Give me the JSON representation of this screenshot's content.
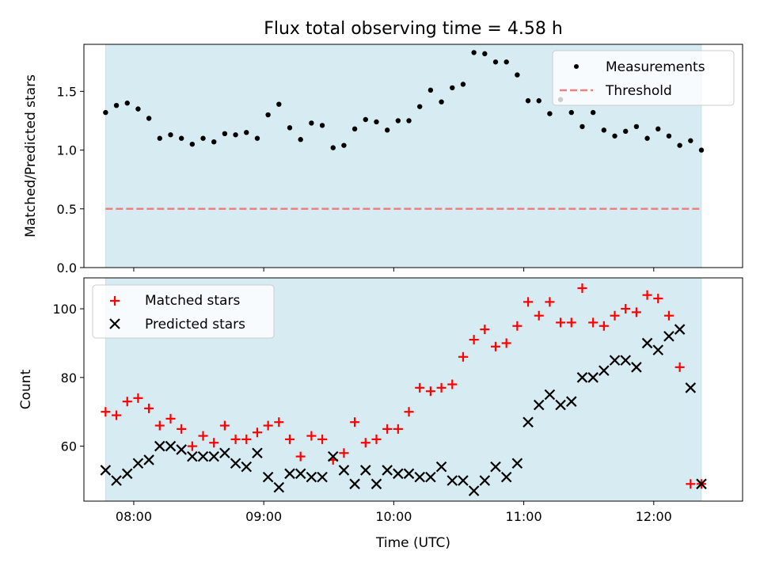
{
  "chart_data": [
    {
      "type": "scatter",
      "title": "Flux total observing time = 4.58 h",
      "ylabel": "Matched/Predicted stars",
      "xlabel": "",
      "ylim": [
        0,
        1.9
      ],
      "yticks": [
        0.0,
        0.5,
        1.0,
        1.5
      ],
      "ytick_labels": [
        "0.0",
        "0.5",
        "1.0",
        "1.5"
      ],
      "xlim": [
        "07:37",
        "12:41"
      ],
      "xticks": [
        "08:00",
        "09:00",
        "10:00",
        "11:00",
        "12:00"
      ],
      "xtick_labels_visible": false,
      "shaded_span": [
        "07:47",
        "12:22"
      ],
      "shade_color": "#add8e6",
      "legend_position": "upper right",
      "series": [
        {
          "name": "Measurements",
          "marker": "dot",
          "color": "#000000",
          "x": [
            "07:47",
            "07:52",
            "07:57",
            "08:02",
            "08:07",
            "08:12",
            "08:17",
            "08:22",
            "08:27",
            "08:32",
            "08:37",
            "08:42",
            "08:47",
            "08:52",
            "08:57",
            "09:02",
            "09:07",
            "09:12",
            "09:17",
            "09:22",
            "09:27",
            "09:32",
            "09:37",
            "09:42",
            "09:47",
            "09:52",
            "09:57",
            "10:02",
            "10:07",
            "10:12",
            "10:17",
            "10:22",
            "10:27",
            "10:32",
            "10:37",
            "10:42",
            "10:47",
            "10:52",
            "10:57",
            "11:02",
            "11:07",
            "11:12",
            "11:17",
            "11:22",
            "11:27",
            "11:32",
            "11:37",
            "11:42",
            "11:47",
            "11:52",
            "11:57",
            "12:02",
            "12:07",
            "12:12",
            "12:17",
            "12:22"
          ],
          "y": [
            1.32,
            1.38,
            1.4,
            1.35,
            1.27,
            1.1,
            1.13,
            1.1,
            1.05,
            1.1,
            1.07,
            1.14,
            1.13,
            1.15,
            1.1,
            1.3,
            1.39,
            1.19,
            1.09,
            1.23,
            1.21,
            1.02,
            1.04,
            1.18,
            1.26,
            1.24,
            1.17,
            1.25,
            1.25,
            1.37,
            1.51,
            1.41,
            1.53,
            1.56,
            1.83,
            1.82,
            1.75,
            1.75,
            1.64,
            1.42,
            1.42,
            1.31,
            1.43,
            1.32,
            1.2,
            1.32,
            1.17,
            1.12,
            1.16,
            1.2,
            1.1,
            1.18,
            1.12,
            1.04,
            1.08,
            1.0
          ]
        },
        {
          "name": "Threshold",
          "marker": "dashed-line",
          "color": "#f08080",
          "x": [
            "07:47",
            "12:22"
          ],
          "y": [
            0.5,
            0.5
          ]
        }
      ]
    },
    {
      "type": "scatter",
      "title": "",
      "ylabel": "Count",
      "xlabel": "Time (UTC)",
      "ylim": [
        44,
        109
      ],
      "yticks": [
        60,
        80,
        100
      ],
      "ytick_labels": [
        "60",
        "80",
        "100"
      ],
      "xlim": [
        "07:37",
        "12:41"
      ],
      "xticks": [
        "08:00",
        "09:00",
        "10:00",
        "11:00",
        "12:00"
      ],
      "xtick_labels": [
        "08:00",
        "09:00",
        "10:00",
        "11:00",
        "12:00"
      ],
      "shaded_span": [
        "07:47",
        "12:22"
      ],
      "shade_color": "#add8e6",
      "legend_position": "upper left",
      "series": [
        {
          "name": "Matched stars",
          "marker": "plus",
          "color": "#ff0000",
          "x": [
            "07:47",
            "07:52",
            "07:57",
            "08:02",
            "08:07",
            "08:12",
            "08:17",
            "08:22",
            "08:27",
            "08:32",
            "08:37",
            "08:42",
            "08:47",
            "08:52",
            "08:57",
            "09:02",
            "09:07",
            "09:12",
            "09:17",
            "09:22",
            "09:27",
            "09:32",
            "09:37",
            "09:42",
            "09:47",
            "09:52",
            "09:57",
            "10:02",
            "10:07",
            "10:12",
            "10:17",
            "10:22",
            "10:27",
            "10:32",
            "10:37",
            "10:42",
            "10:47",
            "10:52",
            "10:57",
            "11:02",
            "11:07",
            "11:12",
            "11:17",
            "11:22",
            "11:27",
            "11:32",
            "11:37",
            "11:42",
            "11:47",
            "11:52",
            "11:57",
            "12:02",
            "12:07",
            "12:12",
            "12:17",
            "12:22"
          ],
          "y": [
            70,
            69,
            73,
            74,
            71,
            66,
            68,
            65,
            60,
            63,
            61,
            66,
            62,
            62,
            64,
            66,
            67,
            62,
            57,
            63,
            62,
            56,
            58,
            67,
            61,
            62,
            65,
            65,
            70,
            77,
            76,
            77,
            78,
            86,
            91,
            94,
            89,
            90,
            95,
            102,
            98,
            102,
            96,
            96,
            106,
            96,
            95,
            98,
            100,
            99,
            104,
            103,
            98,
            83,
            49,
            49
          ]
        },
        {
          "name": "Predicted stars",
          "marker": "x",
          "color": "#000000",
          "x": [
            "07:47",
            "07:52",
            "07:57",
            "08:02",
            "08:07",
            "08:12",
            "08:17",
            "08:22",
            "08:27",
            "08:32",
            "08:37",
            "08:42",
            "08:47",
            "08:52",
            "08:57",
            "09:02",
            "09:07",
            "09:12",
            "09:17",
            "09:22",
            "09:27",
            "09:32",
            "09:37",
            "09:42",
            "09:47",
            "09:52",
            "09:57",
            "10:02",
            "10:07",
            "10:12",
            "10:17",
            "10:22",
            "10:27",
            "10:32",
            "10:37",
            "10:42",
            "10:47",
            "10:52",
            "10:57",
            "11:02",
            "11:07",
            "11:12",
            "11:17",
            "11:22",
            "11:27",
            "11:32",
            "11:37",
            "11:42",
            "11:47",
            "11:52",
            "11:57",
            "12:02",
            "12:07",
            "12:12",
            "12:17",
            "12:22"
          ],
          "y": [
            53,
            50,
            52,
            55,
            56,
            60,
            60,
            59,
            57,
            57,
            57,
            58,
            55,
            54,
            58,
            51,
            48,
            52,
            52,
            51,
            51,
            57,
            53,
            49,
            53,
            49,
            53,
            52,
            52,
            51,
            51,
            54,
            50,
            50,
            47,
            50,
            54,
            51,
            55,
            67,
            72,
            75,
            72,
            73,
            80,
            80,
            82,
            85,
            85,
            83,
            90,
            88,
            92,
            94,
            77,
            49
          ]
        }
      ]
    }
  ]
}
